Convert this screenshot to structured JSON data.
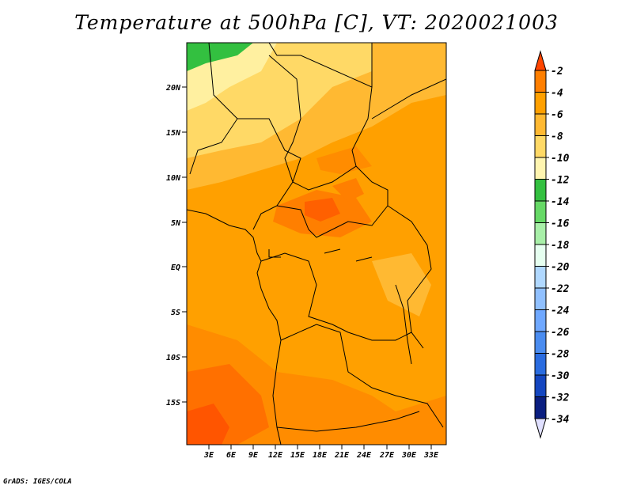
{
  "title": "Temperature at 500hPa [C], VT: 2020021003",
  "credit": "GrADS: IGES/COLA",
  "map": {
    "lat_labels": [
      "20N",
      "15N",
      "10N",
      "5N",
      "EQ",
      "5S",
      "10S",
      "15S"
    ],
    "lon_labels": [
      "3E",
      "6E",
      "9E",
      "12E",
      "15E",
      "18E",
      "21E",
      "24E",
      "27E",
      "30E",
      "33E"
    ]
  },
  "colorbar": {
    "labels": [
      "-2",
      "-4",
      "-6",
      "-8",
      "-10",
      "-12",
      "-14",
      "-16",
      "-18",
      "-20",
      "-22",
      "-24",
      "-26",
      "-28",
      "-30",
      "-32",
      "-34"
    ],
    "colors": [
      "#ff4500",
      "#ff7f00",
      "#ffa000",
      "#ffb932",
      "#ffd966",
      "#fff5b0",
      "#33c040",
      "#66d966",
      "#a8efa8",
      "#e6fff0",
      "#b0d8ff",
      "#90c0ff",
      "#6fa8ff",
      "#4a8cf0",
      "#2a6ce0",
      "#1446c0",
      "#0a1e80",
      "#e0e0ff"
    ]
  },
  "fields": {
    "colors": {
      "deep_orange": "#ff7f00",
      "orange": "#ffa000",
      "light_orange": "#ffb932",
      "yellow": "#ffd966",
      "pale_yellow": "#fff5b0",
      "green": "#33c040",
      "red_orange": "#ff4500"
    }
  }
}
